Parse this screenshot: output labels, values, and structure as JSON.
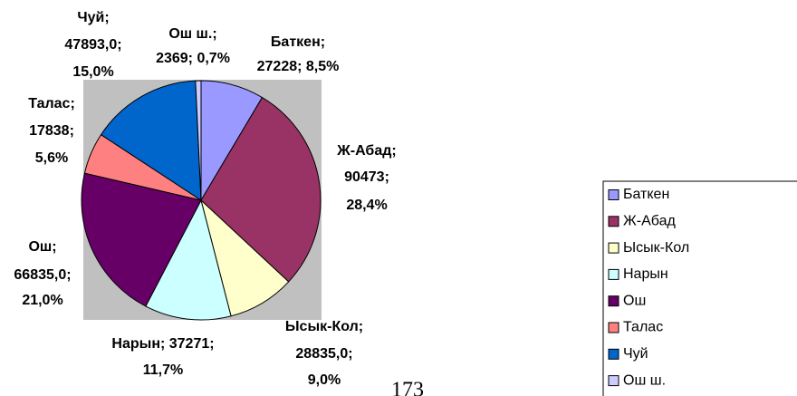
{
  "chart_data": {
    "type": "pie",
    "categories": [
      "Баткен",
      "Ж-Абад",
      "Ысык-Кол",
      "Нарын",
      "Ош",
      "Талас",
      "Чуй",
      "Ош ш."
    ],
    "values": [
      27228,
      90473,
      28835,
      37271,
      66835,
      17838,
      47893,
      2369
    ],
    "value_labels": [
      [
        "Баткен;",
        "27228; 8,5%"
      ],
      [
        "Ж-Абад;",
        "90473;",
        "28,4%"
      ],
      [
        "Ысык-Кол;",
        "28835,0;",
        "9,0%"
      ],
      [
        "Нарын; 37271;",
        "11,7%"
      ],
      [
        "Ош;",
        "66835,0;",
        "21,0%"
      ],
      [
        "Талас;",
        "17838;",
        "5,6%"
      ],
      [
        "Чуй;",
        "47893,0;",
        "15,0%"
      ],
      [
        "Ош ш.;",
        "2369; 0,7%"
      ]
    ],
    "colors": [
      "#9999ff",
      "#993366",
      "#ffffcc",
      "#ccffff",
      "#660066",
      "#ff8080",
      "#0066cc",
      "#ccccff"
    ],
    "legend": "right",
    "page_number": "173"
  }
}
